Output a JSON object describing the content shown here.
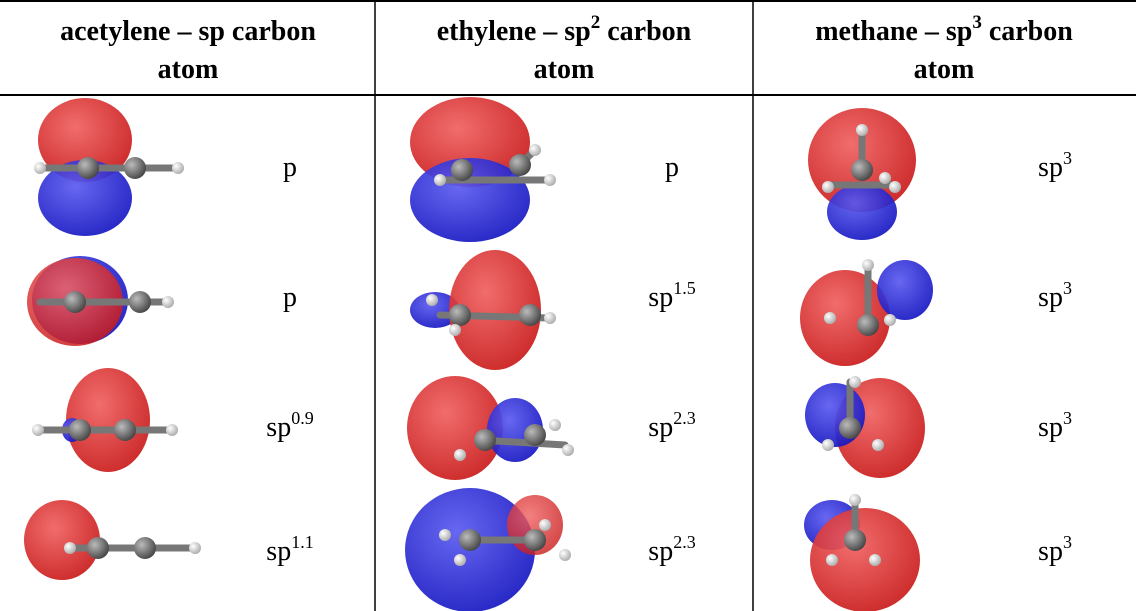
{
  "headers": [
    {
      "text": "acetylene – sp carbon",
      "line2": "atom"
    },
    {
      "text": "ethylene – sp",
      "sup": "2",
      "after": " carbon",
      "line2": "atom"
    },
    {
      "text": "methane – sp",
      "sup": "3",
      "after": " carbon",
      "line2": "atom"
    }
  ],
  "rows": [
    [
      {
        "base": "p"
      },
      {
        "base": "p"
      },
      {
        "base": "sp",
        "sup": "3"
      }
    ],
    [
      {
        "base": "p"
      },
      {
        "base": "sp",
        "sup": "1.5"
      },
      {
        "base": "sp",
        "sup": "3"
      }
    ],
    [
      {
        "base": "sp",
        "sup": "0.9"
      },
      {
        "base": "sp",
        "sup": "2.3"
      },
      {
        "base": "sp",
        "sup": "3"
      }
    ],
    [
      {
        "base": "sp",
        "sup": "1.1"
      },
      {
        "base": "sp",
        "sup": "2.3"
      },
      {
        "base": "sp",
        "sup": "3"
      }
    ]
  ]
}
